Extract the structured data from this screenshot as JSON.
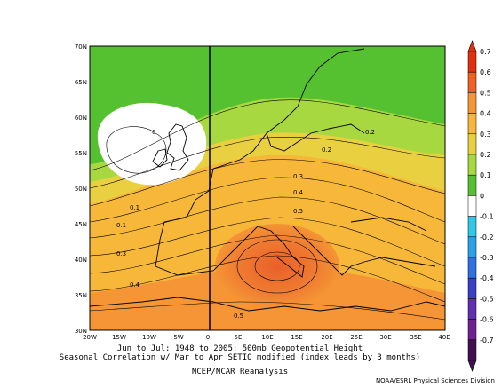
{
  "plot": {
    "lat_ticks": [
      "70N",
      "65N",
      "60N",
      "55N",
      "50N",
      "45N",
      "40N",
      "35N",
      "30N"
    ],
    "lon_ticks": [
      "20W",
      "15W",
      "10W",
      "5W",
      "0",
      "5E",
      "10E",
      "15E",
      "20E",
      "25E",
      "30E",
      "35E",
      "40E"
    ]
  },
  "contour_labels": [
    "0",
    "0.2",
    "0.2",
    "0.1",
    "0.1",
    "0.3",
    "0.3",
    "0.4",
    "0.4",
    "0.5",
    "0.5"
  ],
  "colorbar": {
    "labels": [
      "0.7",
      "0.6",
      "0.5",
      "0.4",
      "0.3",
      "0.2",
      "0.1",
      "0",
      "-0.1",
      "-0.2",
      "-0.3",
      "-0.4",
      "-0.5",
      "-0.6",
      "-0.7"
    ],
    "colors": [
      "#e03010",
      "#f06020",
      "#f59535",
      "#f7b83a",
      "#e8d040",
      "#a8d840",
      "#55c030",
      "#ffffff",
      "#30c8e8",
      "#2aa0e8",
      "#3070e0",
      "#3a40c8",
      "#6030b0",
      "#702090",
      "#401050"
    ]
  },
  "caption": {
    "line1": "Jun to Jul: 1948 to 2005: 500mb Geopotential Height",
    "line2": "Seasonal Correlation w/ Mar to Apr SETIO modified (index leads by 3 months)",
    "line3": "NCEP/NCAR Reanalysis"
  },
  "credit": "NOAA/ESRL Physical Sciences Division"
}
